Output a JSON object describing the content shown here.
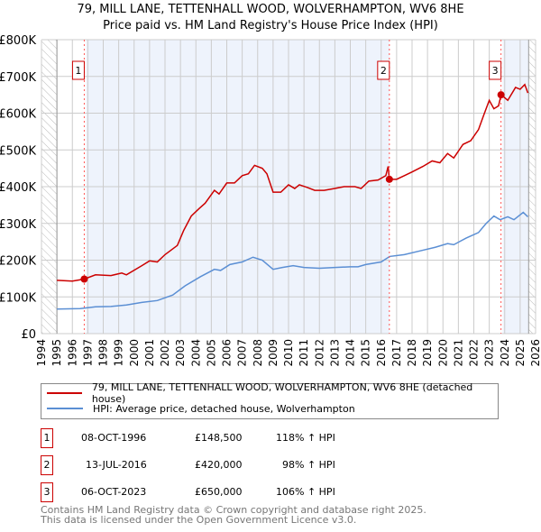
{
  "title": "79, MILL LANE, TETTENHALL WOOD, WOLVERHAMPTON, WV6 8HE",
  "subtitle": "Price paid vs. HM Land Registry's House Price Index (HPI)",
  "colors": {
    "property": "#cc0000",
    "hpi": "#5b8fd4",
    "shade": "#eef3fc"
  },
  "chart_data": {
    "type": "line",
    "xlim": [
      1994,
      2026
    ],
    "ylim": [
      0,
      800000
    ],
    "x_ticks": [
      "1994",
      "1995",
      "1996",
      "1997",
      "1998",
      "1999",
      "2000",
      "2001",
      "2002",
      "2003",
      "2004",
      "2005",
      "2006",
      "2007",
      "2008",
      "2009",
      "2010",
      "2011",
      "2012",
      "2013",
      "2014",
      "2015",
      "2016",
      "2017",
      "2018",
      "2019",
      "2020",
      "2021",
      "2022",
      "2023",
      "2024",
      "2025",
      "2026"
    ],
    "y_ticks": [
      {
        "v": 0,
        "label": "£0"
      },
      {
        "v": 100000,
        "label": "£100K"
      },
      {
        "v": 200000,
        "label": "£200K"
      },
      {
        "v": 300000,
        "label": "£300K"
      },
      {
        "v": 400000,
        "label": "£400K"
      },
      {
        "v": 500000,
        "label": "£500K"
      },
      {
        "v": 600000,
        "label": "£600K"
      },
      {
        "v": 700000,
        "label": "£700K"
      },
      {
        "v": 800000,
        "label": "£800K"
      }
    ],
    "series": [
      {
        "name": "79, MILL LANE, TETTENHALL WOOD, WOLVERHAMPTON, WV6 8HE (detached house)",
        "color": "#cc0000",
        "points": [
          [
            1995,
            145
          ],
          [
            1996,
            143
          ],
          [
            1996.77,
            148.5
          ],
          [
            1997.5,
            160
          ],
          [
            1998.5,
            158
          ],
          [
            1999.2,
            165
          ],
          [
            1999.5,
            160
          ],
          [
            2000.5,
            185
          ],
          [
            2001,
            198
          ],
          [
            2001.5,
            195
          ],
          [
            2002,
            215
          ],
          [
            2002.8,
            240
          ],
          [
            2003.2,
            280
          ],
          [
            2003.7,
            320
          ],
          [
            2004.2,
            340
          ],
          [
            2004.6,
            355
          ],
          [
            2005.2,
            390
          ],
          [
            2005.5,
            380
          ],
          [
            2006,
            410
          ],
          [
            2006.5,
            410
          ],
          [
            2007,
            430
          ],
          [
            2007.4,
            435
          ],
          [
            2007.8,
            458
          ],
          [
            2008.3,
            450
          ],
          [
            2008.6,
            435
          ],
          [
            2009,
            385
          ],
          [
            2009.5,
            385
          ],
          [
            2010,
            405
          ],
          [
            2010.4,
            395
          ],
          [
            2010.7,
            405
          ],
          [
            2011.2,
            398
          ],
          [
            2011.7,
            390
          ],
          [
            2012.3,
            390
          ],
          [
            2013,
            395
          ],
          [
            2013.6,
            400
          ],
          [
            2014.3,
            400
          ],
          [
            2014.7,
            395
          ],
          [
            2015.2,
            415
          ],
          [
            2015.8,
            418
          ],
          [
            2016.3,
            430
          ],
          [
            2016.45,
            455
          ],
          [
            2016.53,
            420
          ],
          [
            2017,
            420
          ],
          [
            2017.5,
            430
          ],
          [
            2018,
            440
          ],
          [
            2018.7,
            455
          ],
          [
            2019.3,
            470
          ],
          [
            2019.8,
            465
          ],
          [
            2020.3,
            490
          ],
          [
            2020.7,
            478
          ],
          [
            2021.3,
            515
          ],
          [
            2021.8,
            525
          ],
          [
            2022.3,
            555
          ],
          [
            2022.6,
            590
          ],
          [
            2023,
            635
          ],
          [
            2023.3,
            612
          ],
          [
            2023.6,
            620
          ],
          [
            2023.77,
            650
          ],
          [
            2024.2,
            635
          ],
          [
            2024.7,
            670
          ],
          [
            2025,
            665
          ],
          [
            2025.3,
            678
          ],
          [
            2025.5,
            655
          ]
        ]
      },
      {
        "name": "HPI: Average price, detached house, Wolverhampton",
        "color": "#5b8fd4",
        "points": [
          [
            1995,
            67
          ],
          [
            1996.5,
            68
          ],
          [
            1997.5,
            73
          ],
          [
            1998.5,
            74
          ],
          [
            1999.5,
            78
          ],
          [
            2000.5,
            85
          ],
          [
            2001.5,
            90
          ],
          [
            2002.5,
            105
          ],
          [
            2003.3,
            130
          ],
          [
            2004.3,
            155
          ],
          [
            2005.2,
            175
          ],
          [
            2005.6,
            172
          ],
          [
            2006.2,
            188
          ],
          [
            2007,
            195
          ],
          [
            2007.7,
            208
          ],
          [
            2008.3,
            200
          ],
          [
            2009,
            175
          ],
          [
            2009.6,
            180
          ],
          [
            2010.3,
            185
          ],
          [
            2011,
            180
          ],
          [
            2012,
            178
          ],
          [
            2013,
            180
          ],
          [
            2014,
            182
          ],
          [
            2014.5,
            182
          ],
          [
            2015,
            188
          ],
          [
            2016,
            195
          ],
          [
            2016.55,
            210
          ],
          [
            2017.5,
            215
          ],
          [
            2018.5,
            225
          ],
          [
            2019.5,
            235
          ],
          [
            2020.3,
            245
          ],
          [
            2020.7,
            242
          ],
          [
            2021.5,
            260
          ],
          [
            2022.3,
            275
          ],
          [
            2022.8,
            300
          ],
          [
            2023.3,
            320
          ],
          [
            2023.7,
            310
          ],
          [
            2024.2,
            318
          ],
          [
            2024.6,
            310
          ],
          [
            2025.2,
            330
          ],
          [
            2025.5,
            318
          ]
        ]
      }
    ],
    "sales": [
      {
        "n": "1",
        "x": 1996.77,
        "price": 148500
      },
      {
        "n": "2",
        "x": 2016.53,
        "price": 420000
      },
      {
        "n": "3",
        "x": 2023.76,
        "price": 650000
      }
    ]
  },
  "legend": {
    "property": "79, MILL LANE, TETTENHALL WOOD, WOLVERHAMPTON, WV6 8HE (detached house)",
    "hpi": "HPI: Average price, detached house, Wolverhampton"
  },
  "sales_table": [
    {
      "n": "1",
      "date": "08-OCT-1996",
      "price": "£148,500",
      "hpi": "118% ↑ HPI"
    },
    {
      "n": "2",
      "date": "13-JUL-2016",
      "price": "£420,000",
      "hpi": "98% ↑ HPI"
    },
    {
      "n": "3",
      "date": "06-OCT-2023",
      "price": "£650,000",
      "hpi": "106% ↑ HPI"
    }
  ],
  "footer": [
    "Contains HM Land Registry data © Crown copyright and database right 2025.",
    "This data is licensed under the Open Government Licence v3.0."
  ]
}
